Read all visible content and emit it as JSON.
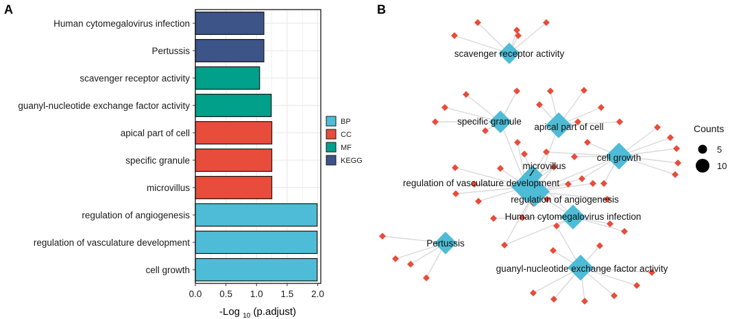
{
  "panels": {
    "a": "A",
    "b": "B"
  },
  "colors": {
    "BP": "#4ebcd6",
    "CC": "#e84c3a",
    "MF": "#00a08a",
    "KEGG": "#3c5488",
    "gene": "#e84c3a",
    "term": "#4ebcd6",
    "edge": "#d9d9d9",
    "grid": "#ebebeb"
  },
  "chart_data": [
    {
      "type": "bar",
      "orientation": "horizontal",
      "categories": [
        "Human cytomegalovirus infection",
        "Pertussis",
        "scavenger receptor activity",
        "guanyl-nucleotide exchange factor activity",
        "apical part of cell",
        "specific granule",
        "microvillus",
        "regulation of angiogenesis",
        "regulation of vasculature development",
        "cell growth"
      ],
      "values": [
        1.12,
        1.12,
        1.05,
        1.24,
        1.25,
        1.25,
        1.25,
        1.99,
        1.99,
        1.99
      ],
      "groups": [
        "KEGG",
        "KEGG",
        "MF",
        "MF",
        "CC",
        "CC",
        "CC",
        "BP",
        "BP",
        "BP"
      ],
      "xlabel_prefix": "-Log ",
      "xlabel_sub": "10",
      "xlabel_suffix": " (p.adjust)",
      "xlim": [
        0,
        2.05
      ],
      "ticks": [
        "0.0",
        "0.5",
        "1.0",
        "1.5",
        "2.0"
      ],
      "tick_values": [
        0,
        0.5,
        1.0,
        1.5,
        2.0
      ],
      "legend": {
        "entries": [
          "BP",
          "CC",
          "MF",
          "KEGG"
        ],
        "placement": "right"
      },
      "grid": true
    },
    {
      "type": "network",
      "legend": {
        "title": "Counts",
        "entries": [
          "5",
          "10"
        ],
        "placement": "right"
      },
      "terms": [
        {
          "label": "scavenger receptor activity",
          "count": 5
        },
        {
          "label": "specific granule",
          "count": 6
        },
        {
          "label": "apical part of cell",
          "count": 9
        },
        {
          "label": "cell growth",
          "count": 10
        },
        {
          "label": "microvillus",
          "count": 4
        },
        {
          "label": "regulation of vasculature development",
          "count": 14
        },
        {
          "label": "regulation of angiogenesis",
          "count": 14
        },
        {
          "label": "Human cytomegalovirus infection",
          "count": 8
        },
        {
          "label": "Pertussis",
          "count": 6
        },
        {
          "label": "guanyl-nucleotide exchange factor activity",
          "count": 9
        }
      ]
    }
  ]
}
